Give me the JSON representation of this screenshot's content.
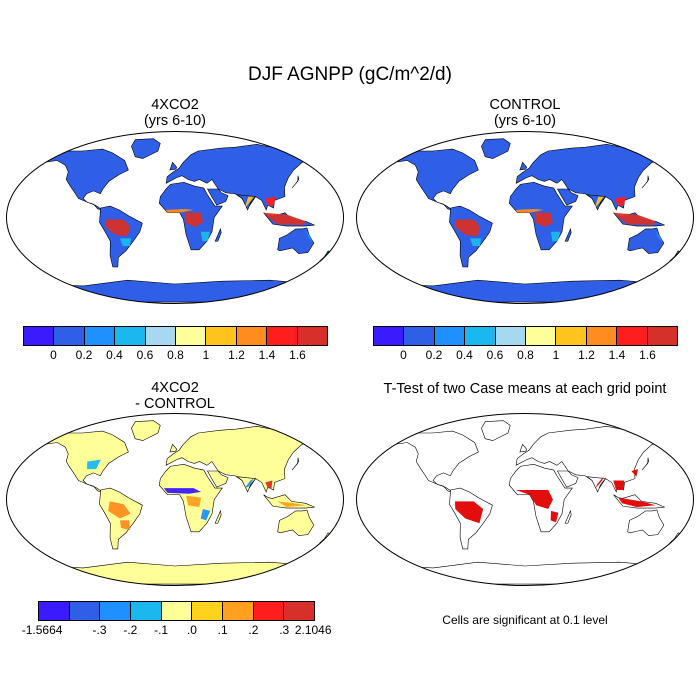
{
  "figure": {
    "title": "DJF AGNPP (gC/m^2/d)"
  },
  "panels": [
    {
      "id": "4xco2",
      "title_line1": "4XCO2",
      "title_line2": "(yrs 6-10)"
    },
    {
      "id": "control",
      "title_line1": "CONTROL",
      "title_line2": "(yrs 6-10)"
    },
    {
      "id": "diff",
      "title_line1": "4XCO2",
      "title_line2": "- CONTROL"
    },
    {
      "id": "ttest",
      "title_line1": "T-Test of two Case means at each grid point",
      "title_line2": ""
    }
  ],
  "colorbars": {
    "abs_colors": [
      "#3b1aff",
      "#2f5fe6",
      "#1e90ff",
      "#1ab8ef",
      "#a6d8f2",
      "#ffff99",
      "#ffc31e",
      "#ff8c1e",
      "#ff1e1e",
      "#d7302a"
    ],
    "abs_labels": [
      "0",
      "0.2",
      "0.4",
      "0.6",
      "0.8",
      "1",
      "1.2",
      "1.4",
      "1.6"
    ],
    "diff_colors": [
      "#3b1aff",
      "#2f5fe6",
      "#1e90ff",
      "#1ab8ef",
      "#ffff99",
      "#ffd21e",
      "#ffa01e",
      "#ff1e1e",
      "#d7302a"
    ],
    "diff_labels": [
      "-1.5664",
      "-.3",
      "-.2",
      "-.1",
      ".0",
      ".1",
      ".2",
      ".3",
      "2.1046"
    ]
  },
  "ttest_note": "Cells are significant at 0.1 level",
  "colors": {
    "ocean": "#ffffff",
    "land_low": "#2f5fe6",
    "tropics_high": "#d7302a",
    "diff_bg": "#ffff99",
    "significant": "#e00000"
  }
}
